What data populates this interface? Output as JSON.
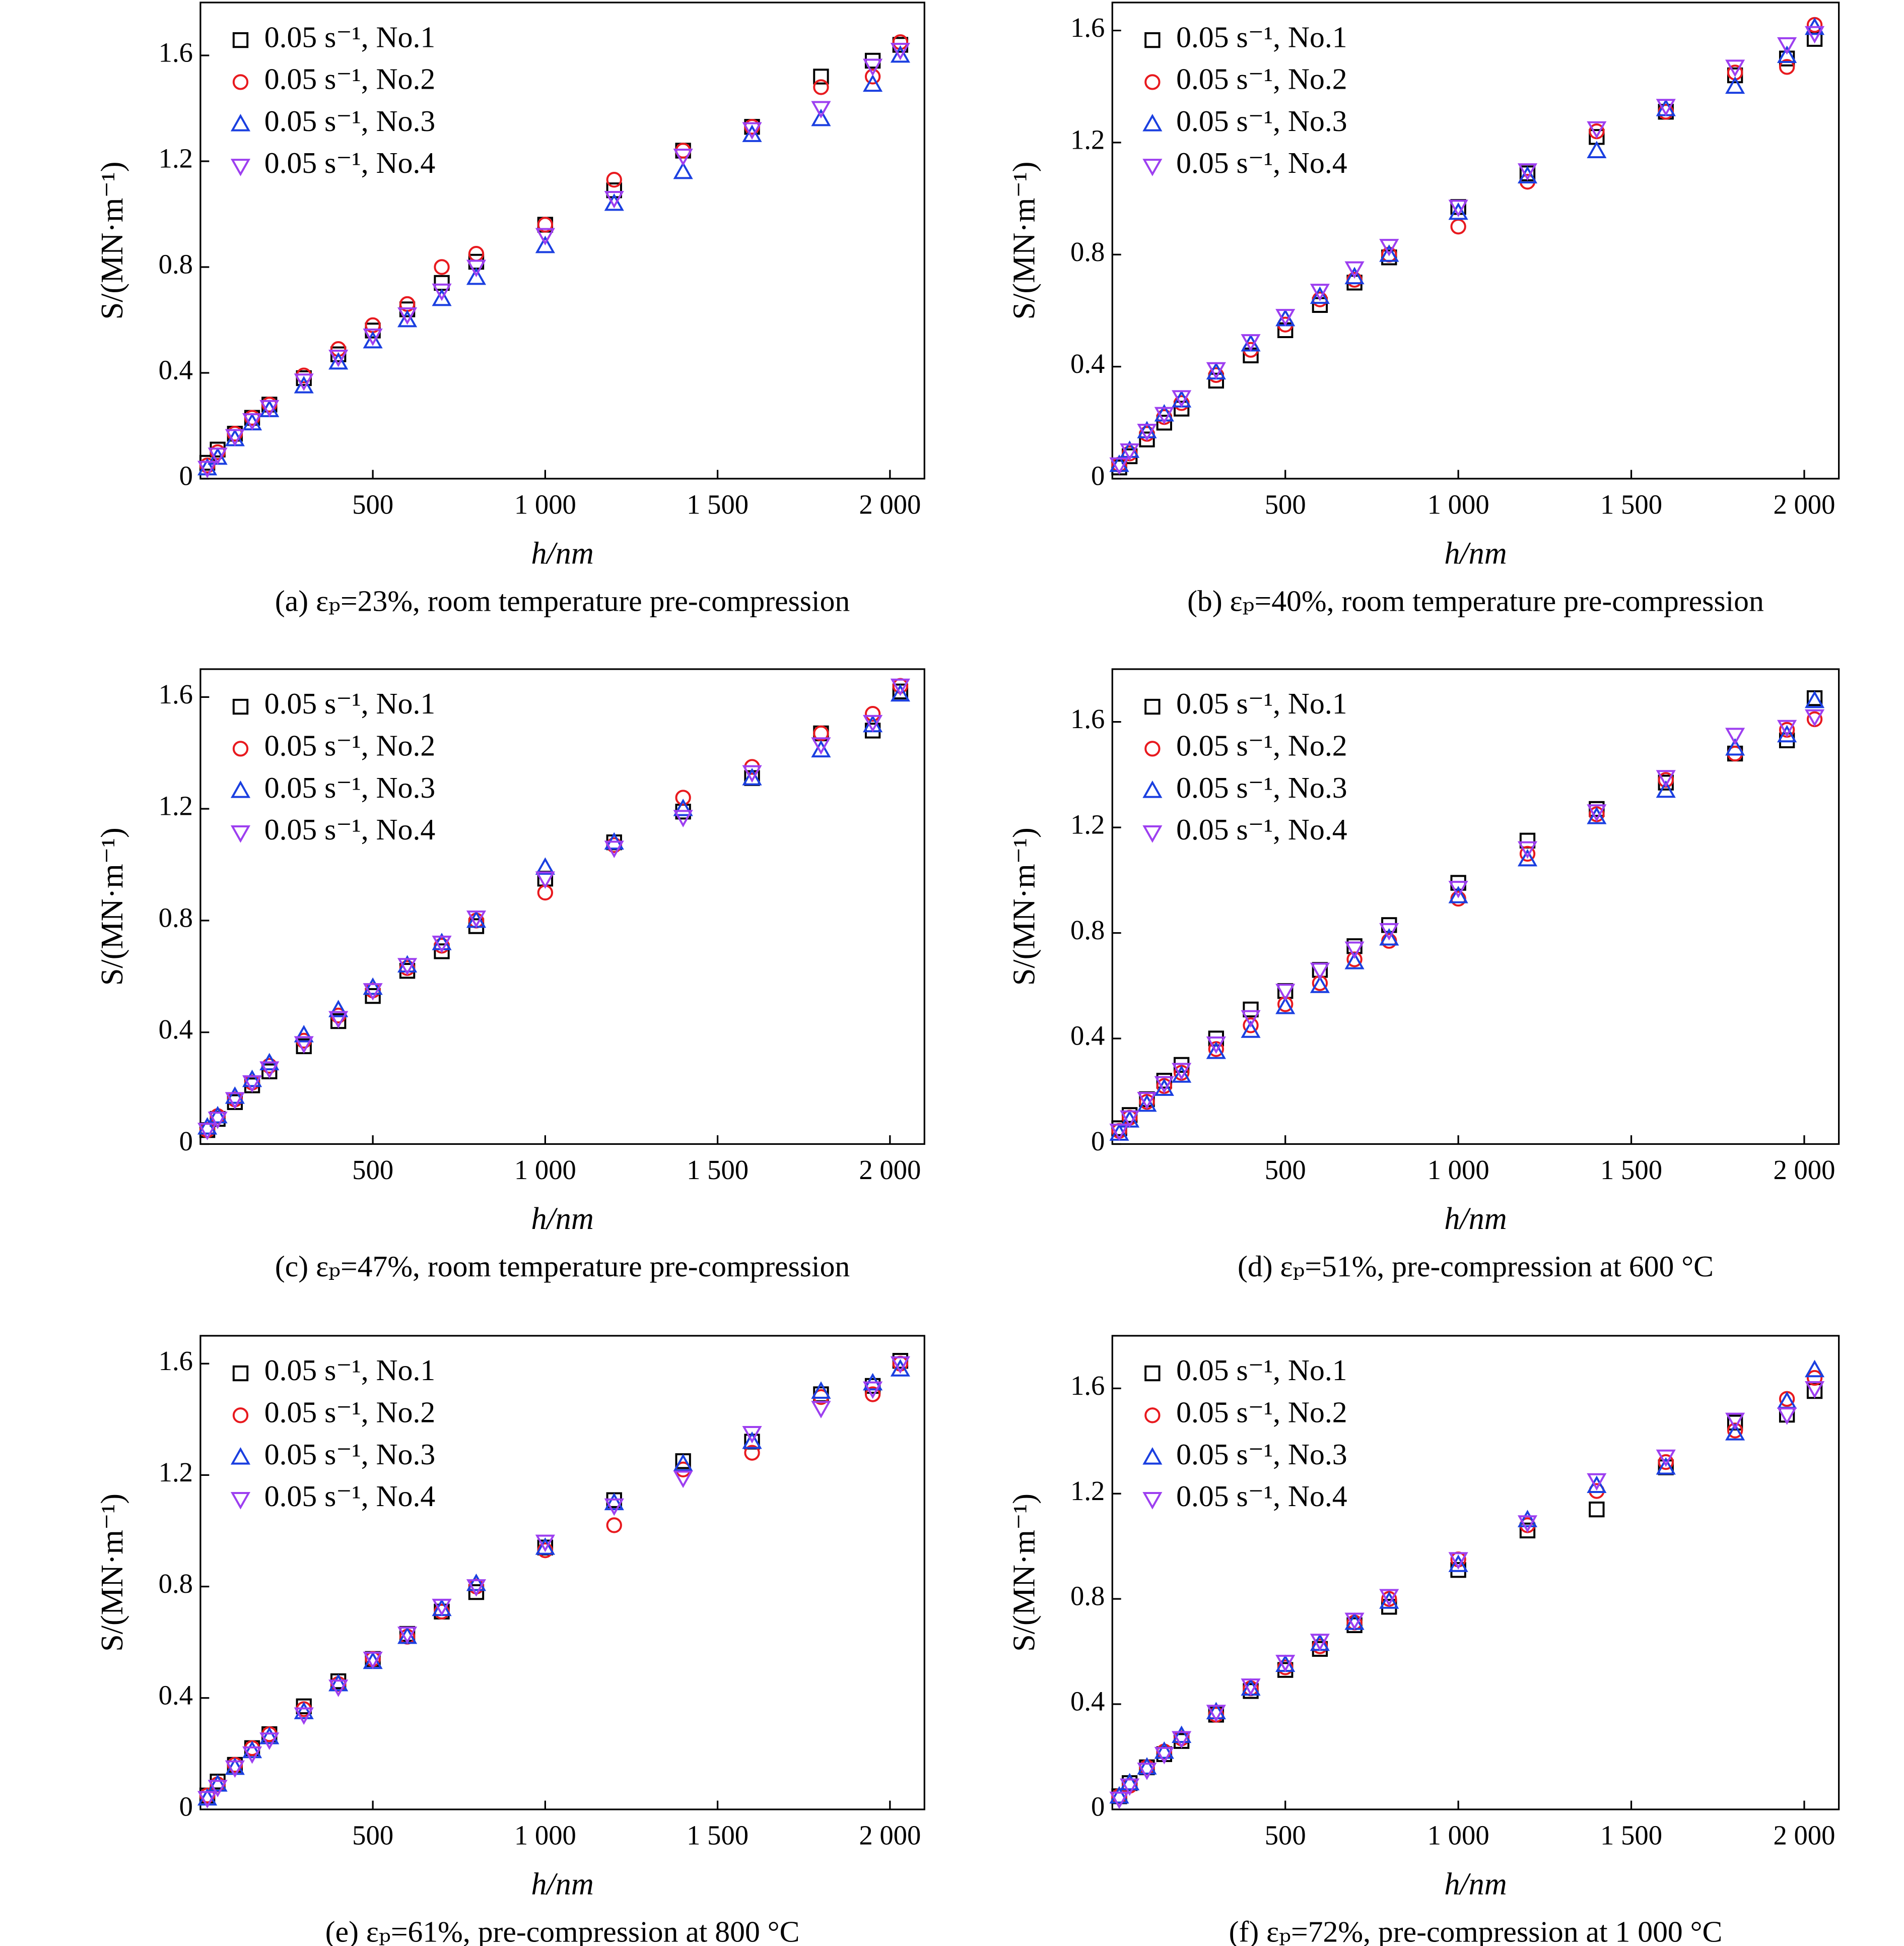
{
  "chart_data": [
    {
      "type": "scatter",
      "title": "(a) εₚ=23%, room temperature pre-compression",
      "xlabel": "h/nm",
      "ylabel": "S/(MN·m⁻¹)",
      "legend": "upper left",
      "xlim": [
        0,
        2100
      ],
      "ylim": [
        0,
        1.8
      ],
      "xticks": [
        500,
        {
          "value": 1000,
          "label": "1 000"
        },
        {
          "value": 1500,
          "label": "1 500"
        },
        {
          "value": 2000,
          "label": "2 000"
        }
      ],
      "yticks": [
        0,
        0.4,
        0.8,
        1.2,
        1.6
      ],
      "x": [
        20,
        50,
        100,
        150,
        200,
        300,
        400,
        500,
        600,
        700,
        800,
        1000,
        1200,
        1400,
        1600,
        1800,
        1950,
        2030
      ],
      "series": [
        {
          "name": "0.05 s⁻¹, No.1",
          "color": "#000000",
          "marker": "square",
          "values": [
            0.06,
            0.11,
            0.17,
            0.23,
            0.28,
            0.38,
            0.47,
            0.56,
            0.64,
            0.74,
            0.82,
            0.96,
            1.09,
            1.24,
            1.33,
            1.52,
            1.58,
            1.64
          ]
        },
        {
          "name": "0.05 s⁻¹, No.2",
          "color": "#e8191e",
          "marker": "circle",
          "values": [
            0.05,
            0.1,
            0.17,
            0.23,
            0.28,
            0.39,
            0.49,
            0.58,
            0.66,
            0.8,
            0.85,
            0.96,
            1.13,
            1.24,
            1.33,
            1.48,
            1.52,
            1.65
          ]
        },
        {
          "name": "0.05 s⁻¹, No.3",
          "color": "#1a3fe0",
          "marker": "triangle-up",
          "values": [
            0.04,
            0.08,
            0.15,
            0.21,
            0.26,
            0.35,
            0.44,
            0.52,
            0.6,
            0.68,
            0.76,
            0.88,
            1.04,
            1.16,
            1.3,
            1.36,
            1.49,
            1.6
          ]
        },
        {
          "name": "0.05 s⁻¹, No.4",
          "color": "#9d3ff0",
          "marker": "triangle-down",
          "values": [
            0.04,
            0.09,
            0.16,
            0.22,
            0.27,
            0.37,
            0.46,
            0.54,
            0.62,
            0.71,
            0.8,
            0.92,
            1.06,
            1.22,
            1.32,
            1.4,
            1.56,
            1.62
          ]
        }
      ]
    },
    {
      "type": "scatter",
      "title": "(b) εₚ=40%, room temperature pre-compression",
      "xlabel": "h/nm",
      "ylabel": "S/(MN·m⁻¹)",
      "legend": "upper left",
      "xlim": [
        0,
        2100
      ],
      "ylim": [
        0,
        1.7
      ],
      "xticks": [
        500,
        {
          "value": 1000,
          "label": "1 000"
        },
        {
          "value": 1500,
          "label": "1 500"
        },
        {
          "value": 2000,
          "label": "2 000"
        }
      ],
      "yticks": [
        0,
        0.4,
        0.8,
        1.2,
        1.6
      ],
      "x": [
        20,
        50,
        100,
        150,
        200,
        300,
        400,
        500,
        600,
        700,
        800,
        1000,
        1200,
        1400,
        1600,
        1800,
        1950,
        2030
      ],
      "series": [
        {
          "name": "0.05 s⁻¹, No.1",
          "color": "#000000",
          "marker": "square",
          "values": [
            0.04,
            0.08,
            0.14,
            0.2,
            0.25,
            0.35,
            0.44,
            0.53,
            0.62,
            0.7,
            0.79,
            0.97,
            1.09,
            1.22,
            1.31,
            1.44,
            1.5,
            1.57
          ]
        },
        {
          "name": "0.05 s⁻¹, No.2",
          "color": "#e8191e",
          "marker": "circle",
          "values": [
            0.05,
            0.09,
            0.16,
            0.22,
            0.27,
            0.37,
            0.46,
            0.55,
            0.64,
            0.71,
            0.8,
            0.9,
            1.06,
            1.24,
            1.31,
            1.45,
            1.47,
            1.62
          ]
        },
        {
          "name": "0.05 s⁻¹, No.3",
          "color": "#1a3fe0",
          "marker": "triangle-up",
          "values": [
            0.05,
            0.1,
            0.17,
            0.23,
            0.28,
            0.38,
            0.48,
            0.57,
            0.65,
            0.72,
            0.8,
            0.95,
            1.08,
            1.17,
            1.32,
            1.4,
            1.51,
            1.61
          ]
        },
        {
          "name": "0.05 s⁻¹, No.4",
          "color": "#9d3ff0",
          "marker": "triangle-down",
          "values": [
            0.05,
            0.1,
            0.17,
            0.23,
            0.29,
            0.39,
            0.49,
            0.58,
            0.67,
            0.75,
            0.83,
            0.97,
            1.1,
            1.25,
            1.33,
            1.47,
            1.55,
            1.59
          ]
        }
      ]
    },
    {
      "type": "scatter",
      "title": "(c) εₚ=47%, room temperature pre-compression",
      "xlabel": "h/nm",
      "ylabel": "S/(MN·m⁻¹)",
      "legend": "upper left",
      "xlim": [
        0,
        2100
      ],
      "ylim": [
        0,
        1.7
      ],
      "xticks": [
        500,
        {
          "value": 1000,
          "label": "1 000"
        },
        {
          "value": 1500,
          "label": "1 500"
        },
        {
          "value": 2000,
          "label": "2 000"
        }
      ],
      "yticks": [
        0,
        0.4,
        0.8,
        1.2,
        1.6
      ],
      "x": [
        20,
        50,
        100,
        150,
        200,
        300,
        400,
        500,
        600,
        700,
        800,
        1000,
        1200,
        1400,
        1600,
        1800,
        1950,
        2030
      ],
      "series": [
        {
          "name": "0.05 s⁻¹, No.1",
          "color": "#000000",
          "marker": "square",
          "values": [
            0.05,
            0.09,
            0.15,
            0.21,
            0.26,
            0.35,
            0.44,
            0.53,
            0.62,
            0.69,
            0.78,
            0.95,
            1.08,
            1.19,
            1.31,
            1.47,
            1.48,
            1.62
          ]
        },
        {
          "name": "0.05 s⁻¹, No.2",
          "color": "#e8191e",
          "marker": "circle",
          "values": [
            0.05,
            0.1,
            0.16,
            0.22,
            0.28,
            0.37,
            0.46,
            0.55,
            0.63,
            0.71,
            0.8,
            0.9,
            1.07,
            1.24,
            1.35,
            1.47,
            1.54,
            1.64
          ]
        },
        {
          "name": "0.05 s⁻¹, No.3",
          "color": "#1a3fe0",
          "marker": "triangle-up",
          "values": [
            0.06,
            0.1,
            0.17,
            0.23,
            0.29,
            0.39,
            0.48,
            0.56,
            0.64,
            0.72,
            0.8,
            0.99,
            1.08,
            1.2,
            1.31,
            1.41,
            1.5,
            1.61
          ]
        },
        {
          "name": "0.05 s⁻¹, No.4",
          "color": "#9d3ff0",
          "marker": "triangle-down",
          "values": [
            0.05,
            0.09,
            0.16,
            0.22,
            0.27,
            0.36,
            0.45,
            0.55,
            0.64,
            0.72,
            0.81,
            0.95,
            1.06,
            1.17,
            1.33,
            1.43,
            1.51,
            1.64
          ]
        }
      ]
    },
    {
      "type": "scatter",
      "title": "(d) εₚ=51%, pre-compression at 600 °C",
      "xlabel": "h/nm",
      "ylabel": "S/(MN·m⁻¹)",
      "legend": "upper left",
      "xlim": [
        0,
        2100
      ],
      "ylim": [
        0,
        1.8
      ],
      "xticks": [
        500,
        {
          "value": 1000,
          "label": "1 000"
        },
        {
          "value": 1500,
          "label": "1 500"
        },
        {
          "value": 2000,
          "label": "2 000"
        }
      ],
      "yticks": [
        0,
        0.4,
        0.8,
        1.2,
        1.6
      ],
      "x": [
        20,
        50,
        100,
        150,
        200,
        300,
        400,
        500,
        600,
        700,
        800,
        1000,
        1200,
        1400,
        1600,
        1800,
        1950,
        2030
      ],
      "series": [
        {
          "name": "0.05 s⁻¹, No.1",
          "color": "#000000",
          "marker": "square",
          "values": [
            0.06,
            0.11,
            0.17,
            0.24,
            0.3,
            0.4,
            0.51,
            0.58,
            0.66,
            0.75,
            0.83,
            0.99,
            1.15,
            1.27,
            1.37,
            1.48,
            1.53,
            1.69
          ]
        },
        {
          "name": "0.05 s⁻¹, No.2",
          "color": "#e8191e",
          "marker": "circle",
          "values": [
            0.05,
            0.1,
            0.16,
            0.22,
            0.27,
            0.36,
            0.45,
            0.53,
            0.61,
            0.7,
            0.77,
            0.93,
            1.1,
            1.25,
            1.38,
            1.48,
            1.57,
            1.61
          ]
        },
        {
          "name": "0.05 s⁻¹, No.3",
          "color": "#1a3fe0",
          "marker": "triangle-up",
          "values": [
            0.04,
            0.09,
            0.15,
            0.21,
            0.26,
            0.35,
            0.43,
            0.52,
            0.6,
            0.69,
            0.78,
            0.94,
            1.08,
            1.24,
            1.34,
            1.5,
            1.55,
            1.68
          ]
        },
        {
          "name": "0.05 s⁻¹, No.4",
          "color": "#9d3ff0",
          "marker": "triangle-down",
          "values": [
            0.05,
            0.1,
            0.17,
            0.23,
            0.28,
            0.38,
            0.48,
            0.58,
            0.66,
            0.74,
            0.81,
            0.97,
            1.12,
            1.26,
            1.39,
            1.55,
            1.58,
            1.62
          ]
        }
      ]
    },
    {
      "type": "scatter",
      "title": "(e) εₚ=61%, pre-compression at 800 °C",
      "xlabel": "h/nm",
      "ylabel": "S/(MN·m⁻¹)",
      "legend": "upper left",
      "xlim": [
        0,
        2100
      ],
      "ylim": [
        0,
        1.7
      ],
      "xticks": [
        500,
        {
          "value": 1000,
          "label": "1 000"
        },
        {
          "value": 1500,
          "label": "1 500"
        },
        {
          "value": 2000,
          "label": "2 000"
        }
      ],
      "yticks": [
        0,
        0.4,
        0.8,
        1.2,
        1.6
      ],
      "x": [
        20,
        50,
        100,
        150,
        200,
        300,
        400,
        500,
        600,
        700,
        800,
        1000,
        1200,
        1400,
        1600,
        1800,
        1950,
        2030
      ],
      "series": [
        {
          "name": "0.05 s⁻¹, No.1",
          "color": "#000000",
          "marker": "square",
          "values": [
            0.05,
            0.1,
            0.16,
            0.22,
            0.27,
            0.37,
            0.46,
            0.54,
            0.63,
            0.71,
            0.78,
            0.94,
            1.11,
            1.25,
            1.32,
            1.49,
            1.52,
            1.61
          ]
        },
        {
          "name": "0.05 s⁻¹, No.2",
          "color": "#e8191e",
          "marker": "circle",
          "values": [
            0.05,
            0.09,
            0.16,
            0.22,
            0.27,
            0.36,
            0.45,
            0.54,
            0.62,
            0.71,
            0.8,
            0.93,
            1.02,
            1.22,
            1.28,
            1.48,
            1.49,
            1.6
          ]
        },
        {
          "name": "0.05 s⁻¹, No.3",
          "color": "#1a3fe0",
          "marker": "triangle-up",
          "values": [
            0.04,
            0.09,
            0.15,
            0.21,
            0.26,
            0.35,
            0.45,
            0.53,
            0.62,
            0.72,
            0.81,
            0.94,
            1.1,
            1.24,
            1.32,
            1.5,
            1.53,
            1.58
          ]
        },
        {
          "name": "0.05 s⁻¹, No.4",
          "color": "#9d3ff0",
          "marker": "triangle-down",
          "values": [
            0.04,
            0.08,
            0.15,
            0.2,
            0.25,
            0.34,
            0.44,
            0.54,
            0.63,
            0.73,
            0.8,
            0.96,
            1.09,
            1.19,
            1.35,
            1.44,
            1.51,
            1.6
          ]
        }
      ]
    },
    {
      "type": "scatter",
      "title": "(f) εₚ=72%, pre-compression at 1 000 °C",
      "xlabel": "h/nm",
      "ylabel": "S/(MN·m⁻¹)",
      "legend": "upper left",
      "xlim": [
        0,
        2100
      ],
      "ylim": [
        0,
        1.8
      ],
      "xticks": [
        500,
        {
          "value": 1000,
          "label": "1 000"
        },
        {
          "value": 1500,
          "label": "1 500"
        },
        {
          "value": 2000,
          "label": "2 000"
        }
      ],
      "yticks": [
        0,
        0.4,
        0.8,
        1.2,
        1.6
      ],
      "x": [
        20,
        50,
        100,
        150,
        200,
        300,
        400,
        500,
        600,
        700,
        800,
        1000,
        1200,
        1400,
        1600,
        1800,
        1950,
        2030
      ],
      "series": [
        {
          "name": "0.05 s⁻¹, No.1",
          "color": "#000000",
          "marker": "square",
          "values": [
            0.05,
            0.1,
            0.16,
            0.21,
            0.26,
            0.36,
            0.45,
            0.53,
            0.61,
            0.7,
            0.77,
            0.91,
            1.06,
            1.14,
            1.3,
            1.47,
            1.5,
            1.59
          ]
        },
        {
          "name": "0.05 s⁻¹, No.2",
          "color": "#e8191e",
          "marker": "circle",
          "values": [
            0.05,
            0.09,
            0.16,
            0.22,
            0.27,
            0.36,
            0.46,
            0.54,
            0.62,
            0.71,
            0.8,
            0.95,
            1.08,
            1.21,
            1.32,
            1.44,
            1.56,
            1.64
          ]
        },
        {
          "name": "0.05 s⁻¹, No.3",
          "color": "#1a3fe0",
          "marker": "triangle-up",
          "values": [
            0.05,
            0.1,
            0.16,
            0.22,
            0.28,
            0.37,
            0.46,
            0.55,
            0.63,
            0.71,
            0.79,
            0.93,
            1.1,
            1.23,
            1.3,
            1.43,
            1.55,
            1.67
          ]
        },
        {
          "name": "0.05 s⁻¹, No.4",
          "color": "#9d3ff0",
          "marker": "triangle-down",
          "values": [
            0.04,
            0.09,
            0.15,
            0.21,
            0.27,
            0.37,
            0.47,
            0.56,
            0.64,
            0.72,
            0.81,
            0.95,
            1.09,
            1.25,
            1.34,
            1.48,
            1.5,
            1.6
          ]
        }
      ]
    }
  ]
}
